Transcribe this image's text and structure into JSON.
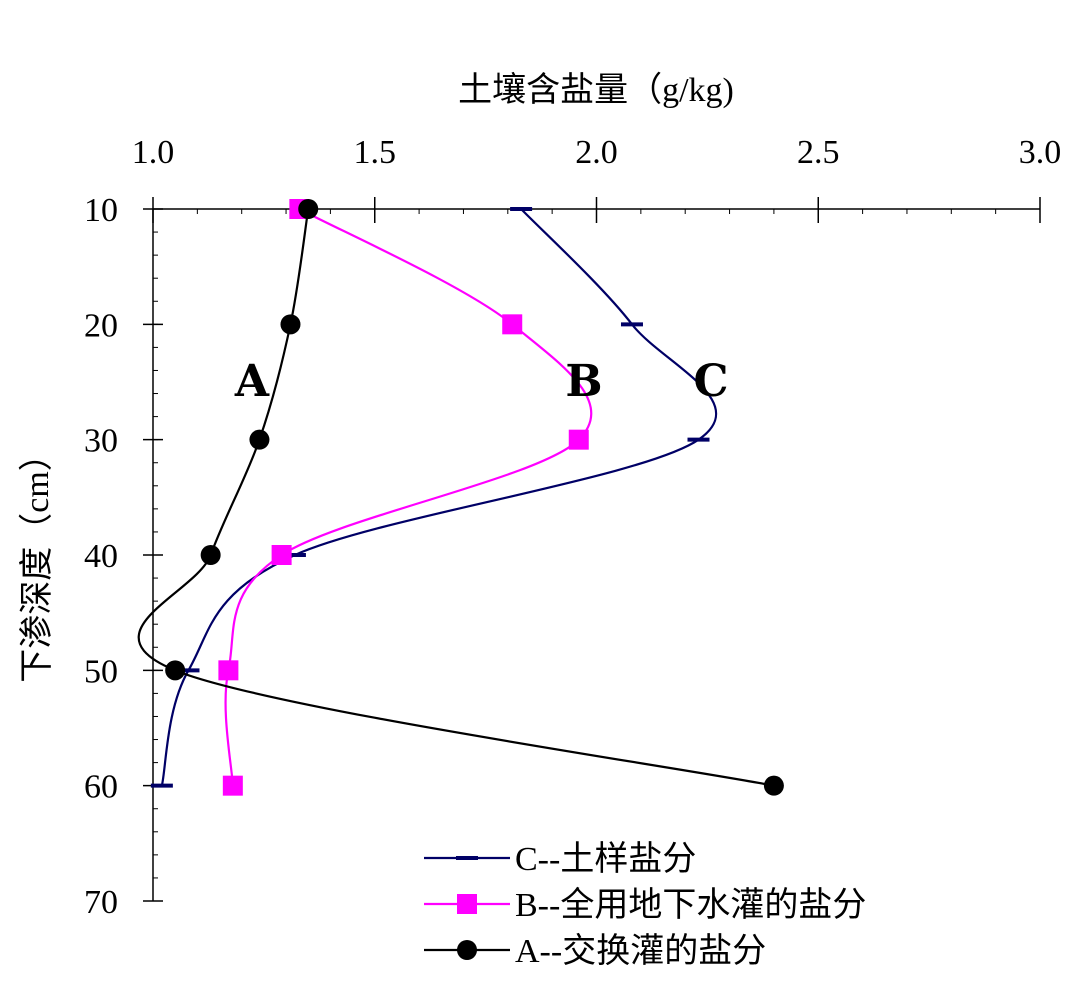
{
  "chart_data": {
    "type": "line",
    "xlabel": "土壤含盐量（g/kg)",
    "ylabel": "下渗深度（cm）",
    "xlim": [
      1.0,
      3.0
    ],
    "ylim": [
      70,
      10
    ],
    "x_axis_position": "top",
    "y_inverted": true,
    "grid": false,
    "legend_position": "bottom-center",
    "x_ticks": [
      "1.0",
      "1.5",
      "2.0",
      "2.5",
      "3.0"
    ],
    "y_ticks": [
      "10",
      "20",
      "30",
      "40",
      "50",
      "60",
      "70"
    ],
    "series": [
      {
        "name": "C--土样盐分",
        "label": "C",
        "color": "#000066",
        "marker": "dash",
        "points": [
          [
            1.83,
            10
          ],
          [
            2.08,
            20
          ],
          [
            2.23,
            30
          ],
          [
            1.32,
            40
          ],
          [
            1.08,
            50
          ],
          [
            1.02,
            60
          ]
        ]
      },
      {
        "name": "B--全用地下水灌的盐分",
        "label": "B",
        "color": "#ff00ff",
        "marker": "square",
        "points": [
          [
            1.33,
            10
          ],
          [
            1.81,
            20
          ],
          [
            1.96,
            30
          ],
          [
            1.29,
            40
          ],
          [
            1.17,
            50
          ],
          [
            1.18,
            60
          ]
        ]
      },
      {
        "name": "A--交换灌的盐分",
        "label": "A",
        "color": "#000000",
        "marker": "circle",
        "points": [
          [
            1.35,
            10
          ],
          [
            1.31,
            20
          ],
          [
            1.24,
            30
          ],
          [
            1.13,
            40
          ],
          [
            1.05,
            50
          ],
          [
            2.4,
            60
          ]
        ]
      }
    ]
  }
}
